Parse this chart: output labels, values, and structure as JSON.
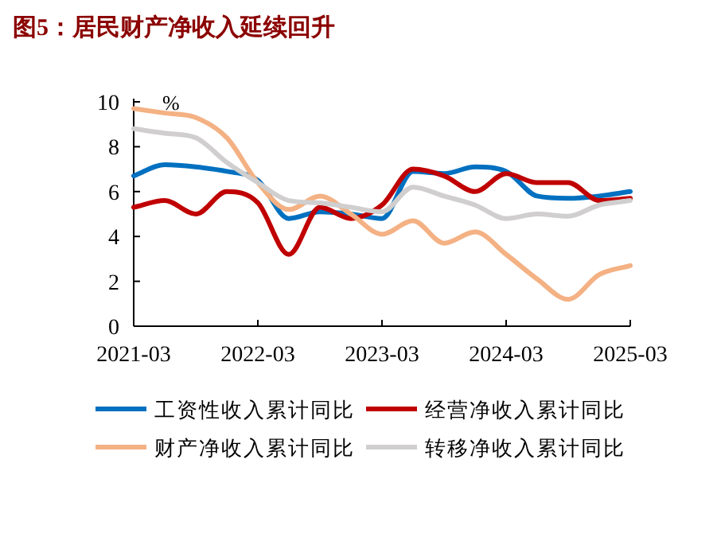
{
  "chart_data": {
    "type": "line",
    "title": "图5：居民财产净收入延续回升",
    "ylabel": "%",
    "x": [
      "2021-03",
      "2021-06",
      "2021-09",
      "2021-12",
      "2022-03",
      "2022-06",
      "2022-09",
      "2022-12",
      "2023-03",
      "2023-06",
      "2023-09",
      "2023-12",
      "2024-03",
      "2024-06",
      "2024-09",
      "2024-12",
      "2025-03"
    ],
    "xlim": [
      "2021-03",
      "2025-03"
    ],
    "xticks": [
      "2021-03",
      "2022-03",
      "2023-03",
      "2024-03",
      "2025-03"
    ],
    "ylim": [
      0,
      10
    ],
    "yticks": [
      0,
      2,
      4,
      6,
      8,
      10
    ],
    "grid": false,
    "legend": "bottom",
    "marker": "none",
    "line_style": "solid",
    "series": [
      {
        "name": "工资性收入累计同比",
        "color": "#0070c0",
        "values": [
          6.7,
          7.2,
          7.1,
          6.9,
          6.5,
          4.8,
          5.1,
          5.0,
          4.8,
          6.9,
          6.8,
          7.1,
          6.9,
          5.8,
          5.7,
          5.8,
          6.0
        ]
      },
      {
        "name": "经营净收入累计同比",
        "color": "#c00000",
        "values": [
          5.3,
          5.6,
          5.0,
          6.0,
          5.5,
          3.2,
          5.3,
          4.8,
          5.4,
          7.0,
          6.7,
          6.0,
          6.8,
          6.4,
          6.4,
          5.6,
          5.7
        ]
      },
      {
        "name": "财产净收入累计同比",
        "color": "#f4b183",
        "values": [
          9.7,
          9.5,
          9.3,
          8.4,
          6.4,
          5.2,
          5.8,
          5.0,
          4.1,
          4.7,
          3.7,
          4.2,
          3.2,
          2.1,
          1.2,
          2.3,
          2.7
        ]
      },
      {
        "name": "转移净收入累计同比",
        "color": "#d0cece",
        "values": [
          8.8,
          8.6,
          8.4,
          7.3,
          6.4,
          5.6,
          5.5,
          5.3,
          5.1,
          6.2,
          5.8,
          5.4,
          4.8,
          5.0,
          4.9,
          5.4,
          5.6
        ]
      }
    ]
  }
}
